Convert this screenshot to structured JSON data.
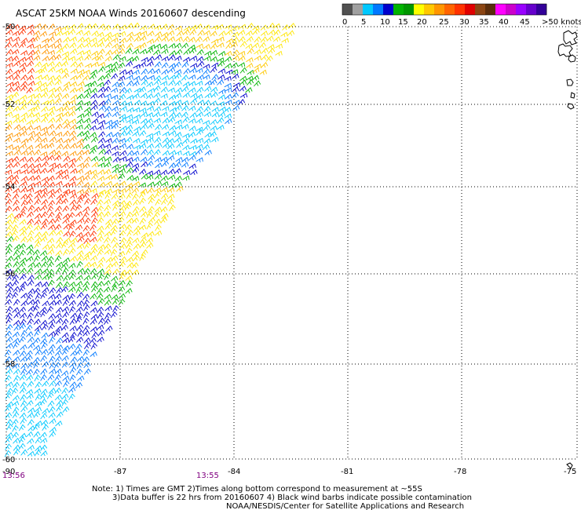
{
  "title": "ASCAT 25KM NOAA Winds 20160607 descending",
  "legend": {
    "labels": [
      "0",
      "5",
      "10",
      "15",
      "20",
      "25",
      "30",
      "35",
      "40",
      "45",
      ">50 knots"
    ],
    "colors": [
      "#505050",
      "#a0a0a0",
      "#00c8ff",
      "#0078ff",
      "#0000cc",
      "#00b400",
      "#009600",
      "#ffff00",
      "#ffc800",
      "#ff9600",
      "#ff6400",
      "#ff3200",
      "#e00000",
      "#8b4513",
      "#5a2d0c",
      "#ff00ff",
      "#cc00cc",
      "#9900ff",
      "#6600cc",
      "#330099"
    ]
  },
  "map": {
    "lon_range": [
      -90,
      -75
    ],
    "lat_range": [
      -60,
      -50
    ],
    "lon_ticks": [
      "-87",
      "-84",
      "-81",
      "-78"
    ],
    "lon_edge_right": "-75",
    "lat_ticks": [
      "-50",
      "-52",
      "-54",
      "-56",
      "-58",
      "-60"
    ],
    "lon_edge_left": "-90"
  },
  "times": {
    "left": "13:56",
    "mid": "13:55"
  },
  "notes": {
    "line1": "Note: 1) Times are GMT 2)Times along bottom correspond to measurement at ~55S",
    "line2": "3)Data buffer is 22 hrs from 20160607 4) Black wind barbs indicate possible contamination",
    "line3": "NOAA/NESDIS/Center for Satellite Applications and Research"
  },
  "palette": {
    "purple_text": "#800080",
    "grid": "#000000"
  }
}
